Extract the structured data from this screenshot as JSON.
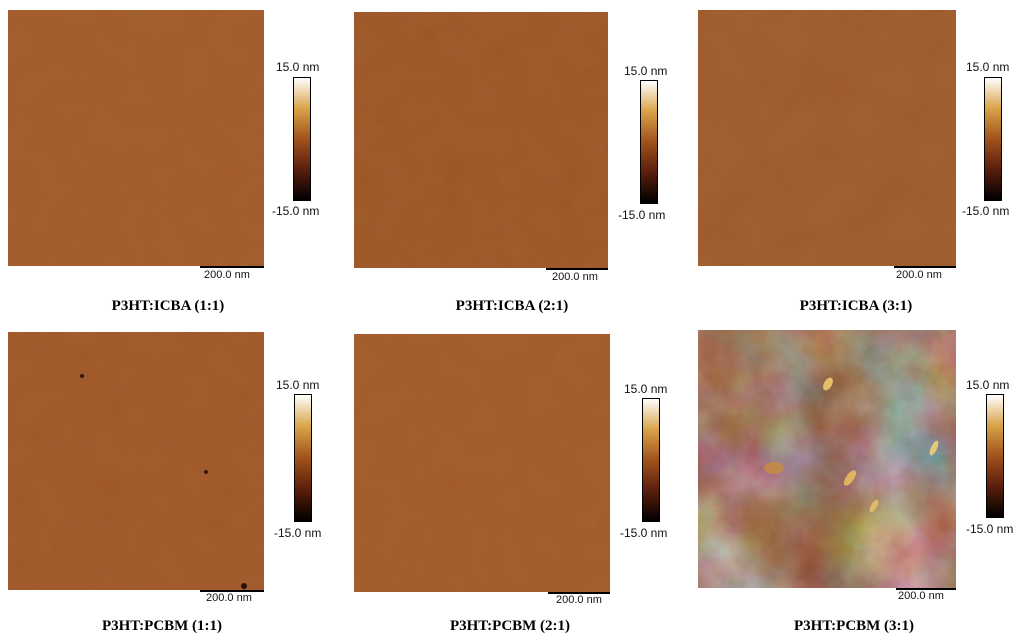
{
  "colormap": [
    "#000000",
    "#5a1e0c",
    "#a0521c",
    "#d9a349",
    "#ffffff"
  ],
  "panels": [
    {
      "caption": "P3HT:ICBA (1:1)",
      "scale_label": "200.0 nm",
      "cbar_max": "15.0 nm",
      "cbar_min": "-15.0 nm",
      "base_color": "#a25a2a",
      "roughness": "low"
    },
    {
      "caption": "P3HT:ICBA (2:1)",
      "scale_label": "200.0 nm",
      "cbar_max": "15.0 nm",
      "cbar_min": "-15.0 nm",
      "base_color": "#9c5626",
      "roughness": "low"
    },
    {
      "caption": "P3HT:ICBA (3:1)",
      "scale_label": "200.0 nm",
      "cbar_max": "15.0 nm",
      "cbar_min": "-15.0 nm",
      "base_color": "#9e5a2c",
      "roughness": "medium"
    },
    {
      "caption": "P3HT:PCBM (1:1)",
      "scale_label": "200.0 nm",
      "cbar_max": "15.0 nm",
      "cbar_min": "-15.0 nm",
      "base_color": "#9f5728",
      "roughness": "low"
    },
    {
      "caption": "P3HT:PCBM (2:1)",
      "scale_label": "200.0 nm",
      "cbar_max": "15.0 nm",
      "cbar_min": "-15.0 nm",
      "base_color": "#a25a2a",
      "roughness": "low"
    },
    {
      "caption": "P3HT:PCBM (3:1)",
      "scale_label": "200.0 nm",
      "cbar_max": "15.0 nm",
      "cbar_min": "-15.0 nm",
      "base_color": "#8e4a20",
      "roughness": "high"
    }
  ]
}
